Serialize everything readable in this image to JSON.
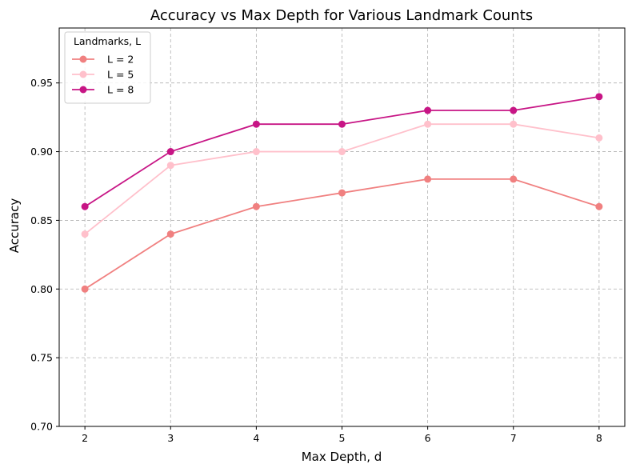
{
  "chart_data": {
    "type": "line",
    "title": "Accuracy vs Max Depth for Various Landmark Counts",
    "xlabel": "Max Depth, d",
    "ylabel": "Accuracy",
    "x": [
      2,
      3,
      4,
      5,
      6,
      7,
      8
    ],
    "xlim": [
      1.7,
      8.3
    ],
    "ylim": [
      0.7,
      0.99
    ],
    "yticks": [
      0.7,
      0.75,
      0.8,
      0.85,
      0.9,
      0.95
    ],
    "ytick_labels": [
      "0.70",
      "0.75",
      "0.80",
      "0.85",
      "0.90",
      "0.95"
    ],
    "xtick_labels": [
      "2",
      "3",
      "4",
      "5",
      "6",
      "7",
      "8"
    ],
    "grid": true,
    "legend": {
      "title": "Landmarks, L",
      "placement": "top-left"
    },
    "series": [
      {
        "name": "L = 2",
        "color": "#f08080",
        "values": [
          0.8,
          0.84,
          0.86,
          0.87,
          0.88,
          0.88,
          0.86
        ]
      },
      {
        "name": "L = 5",
        "color": "#ffc0cb",
        "values": [
          0.84,
          0.89,
          0.9,
          0.9,
          0.92,
          0.92,
          0.91
        ]
      },
      {
        "name": "L = 8",
        "color": "#c71585",
        "values": [
          0.86,
          0.9,
          0.92,
          0.92,
          0.93,
          0.93,
          0.94
        ]
      }
    ]
  }
}
